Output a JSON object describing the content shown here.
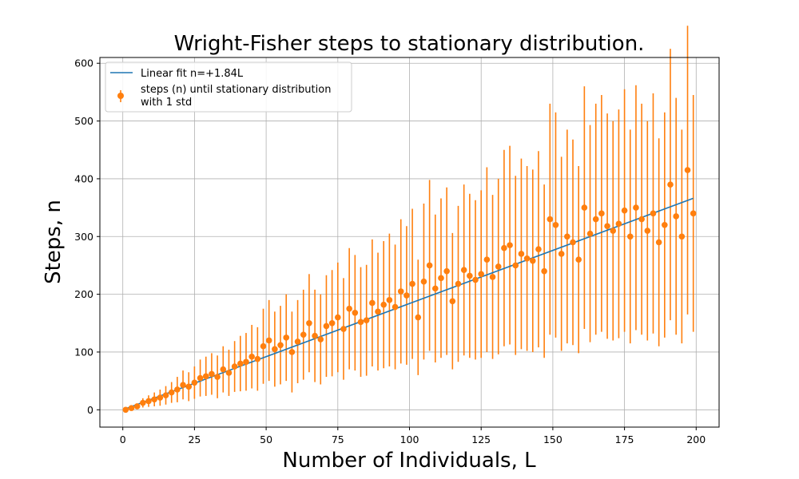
{
  "chart_data": {
    "type": "scatter",
    "title": "Wright-Fisher steps to stationary distribution.",
    "xlabel": "Number of Individuals, L",
    "ylabel": "Steps, n",
    "xlim": [
      -8,
      208
    ],
    "ylim": [
      -30,
      610
    ],
    "xticks": [
      0,
      25,
      50,
      75,
      100,
      125,
      150,
      175,
      200
    ],
    "yticks": [
      0,
      100,
      200,
      300,
      400,
      500,
      600
    ],
    "grid": true,
    "legend_position": "top-left",
    "colors": {
      "fit": "#1f77b4",
      "points": "#ff7f0e",
      "grid": "#b0b0b0"
    },
    "series": [
      {
        "name": "Linear fit n=+1.84L",
        "kind": "line",
        "x": [
          1,
          199
        ],
        "y": [
          1.84,
          366.2
        ]
      },
      {
        "name": "steps (n) until stationary distribution with 1 std",
        "kind": "errorbar",
        "x": [
          1,
          3,
          5,
          7,
          9,
          11,
          13,
          15,
          17,
          19,
          21,
          23,
          25,
          27,
          29,
          31,
          33,
          35,
          37,
          39,
          41,
          43,
          45,
          47,
          49,
          51,
          53,
          55,
          57,
          59,
          61,
          63,
          65,
          67,
          69,
          71,
          73,
          75,
          77,
          79,
          81,
          83,
          85,
          87,
          89,
          91,
          93,
          95,
          97,
          99,
          101,
          103,
          105,
          107,
          109,
          111,
          113,
          115,
          117,
          119,
          121,
          123,
          125,
          127,
          129,
          131,
          133,
          135,
          137,
          139,
          141,
          143,
          145,
          147,
          149,
          151,
          153,
          155,
          157,
          159,
          161,
          163,
          165,
          167,
          169,
          171,
          173,
          175,
          177,
          179,
          181,
          183,
          185,
          187,
          189,
          191,
          193,
          195,
          197,
          199
        ],
        "y": [
          0,
          3,
          6,
          12,
          15,
          18,
          21,
          25,
          30,
          35,
          43,
          40,
          47,
          55,
          58,
          62,
          57,
          70,
          64,
          75,
          80,
          83,
          92,
          88,
          110,
          120,
          105,
          112,
          125,
          100,
          118,
          130,
          150,
          128,
          122,
          145,
          150,
          160,
          140,
          175,
          168,
          152,
          155,
          185,
          170,
          182,
          190,
          178,
          205,
          198,
          218,
          160,
          222,
          250,
          210,
          228,
          240,
          188,
          218,
          242,
          232,
          225,
          235,
          260,
          230,
          248,
          280,
          285,
          250,
          270,
          262,
          258,
          278,
          240,
          330,
          320,
          270,
          300,
          290,
          260,
          350,
          305,
          330,
          340,
          318,
          310,
          322,
          345,
          300,
          350,
          330,
          310,
          340,
          290,
          320,
          390,
          335,
          300,
          415,
          340
        ],
        "error": [
          1,
          3,
          5,
          8,
          10,
          12,
          14,
          16,
          18,
          22,
          25,
          25,
          28,
          32,
          34,
          36,
          37,
          40,
          40,
          44,
          48,
          50,
          55,
          55,
          65,
          70,
          65,
          68,
          75,
          70,
          72,
          78,
          85,
          80,
          78,
          88,
          92,
          95,
          88,
          105,
          100,
          95,
          96,
          110,
          102,
          110,
          115,
          108,
          125,
          120,
          130,
          100,
          135,
          148,
          128,
          138,
          145,
          118,
          135,
          148,
          142,
          138,
          145,
          160,
          142,
          152,
          170,
          172,
          155,
          165,
          160,
          158,
          170,
          150,
          200,
          195,
          168,
          185,
          178,
          162,
          210,
          188,
          200,
          205,
          195,
          190,
          198,
          210,
          185,
          212,
          200,
          190,
          208,
          180,
          195,
          235,
          205,
          185,
          250,
          205
        ]
      }
    ]
  }
}
